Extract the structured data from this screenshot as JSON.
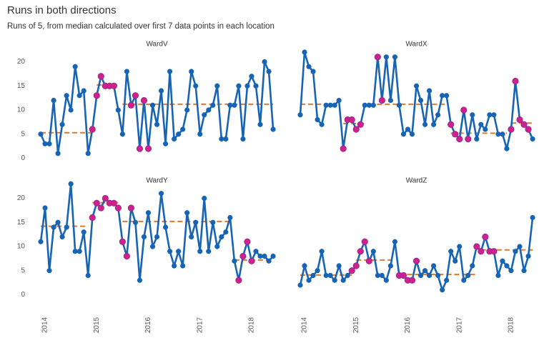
{
  "title": "Runs in both directions",
  "subtitle": "Runs of 5, from median calculated over first 7 data points in each location",
  "chart_data": [
    {
      "type": "line",
      "title": "WardV",
      "line_color": "#1764b4",
      "run_color": "#d11f8e",
      "median_color": "#e0782c",
      "ylim": [
        -1,
        23.5
      ],
      "yticks": [
        0,
        5,
        10,
        15,
        20
      ],
      "values": [
        5,
        3,
        3,
        12,
        1,
        7,
        13,
        10,
        19,
        13,
        14,
        1,
        6,
        13,
        17,
        15,
        15,
        15,
        10,
        5,
        18,
        11,
        13,
        2,
        12,
        2,
        11,
        7,
        14,
        3,
        18,
        4,
        5,
        6,
        10,
        18,
        15,
        5,
        9,
        10,
        11,
        15,
        4,
        4,
        11,
        11,
        15,
        4,
        15,
        17,
        15,
        7,
        20,
        18,
        6
      ],
      "median": [
        5.3,
        5.3,
        5.3,
        5.3,
        5.3,
        5.3,
        5.3,
        5.3,
        5.3,
        5.3,
        5.3,
        5.3,
        5.3,
        15.2,
        15.2,
        15.2,
        15.2,
        15.2,
        15.2,
        11.2,
        11.2,
        11.2,
        11.2,
        11.2,
        11.2,
        11.2,
        11.2,
        11.2,
        11.2,
        11.2,
        11.2,
        11.2,
        11.2,
        11.2,
        11.2,
        11.2,
        11.2,
        11.2,
        11.2,
        11.2,
        11.2,
        11.2,
        11.2,
        11.2,
        11.2,
        11.2,
        11.2,
        11.2,
        11.2,
        11.2,
        11.2,
        11.2,
        11.2,
        11.2,
        11.2
      ],
      "run": [
        false,
        false,
        false,
        false,
        false,
        false,
        false,
        false,
        false,
        false,
        false,
        false,
        true,
        true,
        true,
        true,
        true,
        true,
        false,
        false,
        false,
        true,
        true,
        true,
        true,
        true,
        false,
        false,
        false,
        false,
        false,
        false,
        false,
        false,
        false,
        false,
        false,
        false,
        false,
        false,
        false,
        false,
        false,
        false,
        false,
        false,
        false,
        false,
        false,
        false,
        false,
        false,
        false,
        false,
        false
      ]
    },
    {
      "type": "line",
      "title": "WardX",
      "line_color": "#1764b4",
      "run_color": "#d11f8e",
      "median_color": "#e0782c",
      "ylim": [
        -1,
        23.5
      ],
      "values": [
        9,
        22,
        19,
        18,
        8,
        7,
        11,
        11,
        11,
        12,
        2,
        8,
        8,
        6,
        7,
        11,
        11,
        11,
        21,
        12,
        21,
        12,
        21,
        11,
        5,
        6,
        5,
        15,
        12,
        7,
        14,
        7,
        9,
        13,
        13,
        7,
        5,
        4,
        10,
        4,
        9,
        4,
        7,
        6,
        9,
        9,
        5,
        5,
        2,
        6,
        16,
        8,
        7,
        6,
        4
      ],
      "median": [
        11.2,
        11.2,
        11.2,
        11.2,
        11.2,
        11.2,
        11.2,
        11.2,
        11.2,
        11.2,
        7.2,
        7.2,
        7.2,
        7.2,
        7.2,
        7.2,
        11.2,
        11.2,
        11.2,
        11.2,
        11.2,
        11.2,
        11.2,
        11.2,
        11.2,
        11.2,
        11.2,
        11.2,
        11.2,
        11.2,
        11.2,
        11.2,
        11.2,
        11.2,
        11.2,
        5.2,
        5.2,
        5.2,
        5.2,
        5.2,
        5.2,
        5.2,
        5.2,
        5.2,
        5.2,
        5.2,
        5.2,
        5.2,
        5.2,
        7.3,
        7.3,
        7.3,
        7.3,
        7.3,
        7.3
      ],
      "run": [
        false,
        false,
        false,
        false,
        false,
        false,
        false,
        false,
        false,
        false,
        true,
        true,
        true,
        true,
        true,
        false,
        false,
        false,
        true,
        true,
        false,
        false,
        false,
        false,
        false,
        false,
        false,
        false,
        false,
        false,
        false,
        false,
        false,
        false,
        false,
        true,
        true,
        true,
        true,
        true,
        false,
        false,
        false,
        false,
        false,
        false,
        false,
        false,
        false,
        true,
        true,
        true,
        true,
        true,
        false
      ]
    },
    {
      "type": "line",
      "title": "WardY",
      "line_color": "#1764b4",
      "run_color": "#d11f8e",
      "median_color": "#e0782c",
      "ylim": [
        -1,
        23.5
      ],
      "yticks": [
        0,
        5,
        10,
        15,
        20
      ],
      "categories": [
        null,
        "2014",
        null,
        null,
        null,
        null,
        null,
        null,
        null,
        null,
        null,
        null,
        null,
        "2015",
        null,
        null,
        null,
        null,
        null,
        null,
        null,
        null,
        null,
        null,
        null,
        "2016",
        null,
        null,
        null,
        null,
        null,
        null,
        null,
        null,
        null,
        null,
        null,
        "2017",
        null,
        null,
        null,
        null,
        null,
        null,
        null,
        null,
        null,
        null,
        null,
        "2018",
        null,
        null,
        null,
        null,
        null
      ],
      "values": [
        11,
        18,
        5,
        14,
        15,
        12,
        14,
        23,
        9,
        9,
        13,
        4,
        16,
        19,
        18,
        20,
        19,
        19,
        18,
        11,
        8,
        18,
        15,
        3,
        12,
        17,
        10,
        12,
        21,
        14,
        9,
        6,
        9,
        6,
        17,
        12,
        15,
        9,
        20,
        9,
        15,
        10,
        12,
        13,
        16,
        7,
        3,
        8,
        11,
        7,
        9,
        8,
        8,
        7,
        8
      ],
      "median": [
        14.2,
        14.2,
        14.2,
        14.2,
        14.2,
        14.2,
        14.2,
        14.2,
        14.2,
        14.2,
        14.2,
        14.2,
        19.1,
        19.1,
        19.1,
        19.1,
        19.1,
        19.1,
        19.1,
        15.2,
        15.2,
        15.2,
        15.2,
        15.2,
        15.2,
        15.2,
        15.2,
        15.2,
        15.2,
        15.2,
        15.2,
        15.2,
        15.2,
        15.2,
        15.2,
        15.2,
        15.2,
        15.2,
        15.2,
        15.2,
        15.2,
        15.2,
        15.2,
        15.2,
        15.2,
        7.2,
        7.2,
        7.2,
        7.2,
        7.2,
        7.2,
        7.2,
        7.2,
        7.2,
        7.2
      ],
      "run": [
        false,
        false,
        false,
        false,
        false,
        false,
        false,
        false,
        false,
        false,
        false,
        false,
        true,
        true,
        true,
        true,
        true,
        true,
        true,
        true,
        true,
        true,
        false,
        false,
        false,
        false,
        false,
        false,
        false,
        false,
        false,
        false,
        false,
        false,
        false,
        false,
        false,
        false,
        false,
        false,
        false,
        false,
        false,
        false,
        false,
        false,
        true,
        true,
        true,
        true,
        false,
        false,
        false,
        false,
        false
      ]
    },
    {
      "type": "line",
      "title": "WardZ",
      "line_color": "#1764b4",
      "run_color": "#d11f8e",
      "median_color": "#e0782c",
      "ylim": [
        -1,
        23.5
      ],
      "categories": [
        null,
        "2014",
        null,
        null,
        null,
        null,
        null,
        null,
        null,
        null,
        null,
        null,
        null,
        "2015",
        null,
        null,
        null,
        null,
        null,
        null,
        null,
        null,
        null,
        null,
        null,
        "2016",
        null,
        null,
        null,
        null,
        null,
        null,
        null,
        null,
        null,
        null,
        null,
        "2017",
        null,
        null,
        null,
        null,
        null,
        null,
        null,
        null,
        null,
        null,
        null,
        "2018",
        null,
        null,
        null,
        null,
        null
      ],
      "values": [
        2,
        6,
        3,
        4,
        5,
        9,
        4,
        4,
        3,
        6,
        3,
        4,
        5,
        6,
        9,
        11,
        7,
        9,
        4,
        4,
        3,
        6,
        11,
        4,
        4,
        3,
        3,
        7,
        4,
        5,
        4,
        6,
        4,
        1,
        3,
        9,
        7,
        10,
        3,
        4,
        6,
        10,
        9,
        12,
        9,
        9,
        4,
        7,
        6,
        5,
        9,
        10,
        5,
        8,
        16
      ],
      "median": [
        4.1,
        4.1,
        4.1,
        4.1,
        4.1,
        4.1,
        4.1,
        4.1,
        4.1,
        4.1,
        4.1,
        4.1,
        4.1,
        7.2,
        7.2,
        7.2,
        7.2,
        7.2,
        7.2,
        7.2,
        7.2,
        7.2,
        7.2,
        4.2,
        4.2,
        4.2,
        4.2,
        4.2,
        4.2,
        4.2,
        4.2,
        4.2,
        4.2,
        4.2,
        4.2,
        4.2,
        4.2,
        4.2,
        4.2,
        4.2,
        4.2,
        4.2,
        9.3,
        9.3,
        9.3,
        9.3,
        9.3,
        9.3,
        9.3,
        9.3,
        9.3,
        9.3,
        9.3,
        9.3,
        9.3
      ],
      "run": [
        false,
        false,
        false,
        false,
        false,
        false,
        false,
        false,
        false,
        false,
        false,
        false,
        true,
        true,
        true,
        true,
        true,
        false,
        false,
        false,
        false,
        false,
        false,
        true,
        true,
        true,
        true,
        true,
        false,
        false,
        false,
        false,
        false,
        false,
        false,
        false,
        false,
        false,
        false,
        false,
        false,
        true,
        true,
        true,
        true,
        true,
        false,
        false,
        false,
        false,
        false,
        false,
        false,
        false,
        false
      ]
    }
  ]
}
